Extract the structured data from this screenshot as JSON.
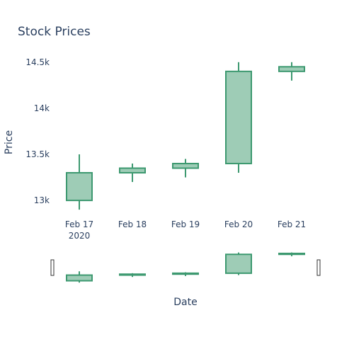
{
  "chart_data": {
    "type": "candlestick",
    "title": "Stock Prices",
    "xlabel": "Date",
    "ylabel": "Price",
    "categories": [
      "Feb 17",
      "Feb 18",
      "Feb 19",
      "Feb 20",
      "Feb 21"
    ],
    "year_label": "2020",
    "y_ticks": [
      13000,
      13500,
      14000,
      14500
    ],
    "y_tick_labels": [
      "13k",
      "13.5k",
      "14k",
      "14.5k"
    ],
    "ylim": [
      12870,
      14560
    ],
    "series": [
      {
        "open": [
          13000,
          13300,
          13350,
          13400,
          14400
        ],
        "high": [
          13500,
          13400,
          13450,
          14500,
          14500
        ],
        "low": [
          12900,
          13200,
          13250,
          13300,
          14300
        ],
        "close": [
          13300,
          13350,
          13400,
          14400,
          14450
        ]
      }
    ],
    "colors": {
      "increasing_line": "#3D9970",
      "increasing_fill": "#9ECCB6",
      "text": "#2a3f5f"
    },
    "range_slider": true,
    "grid": false
  }
}
